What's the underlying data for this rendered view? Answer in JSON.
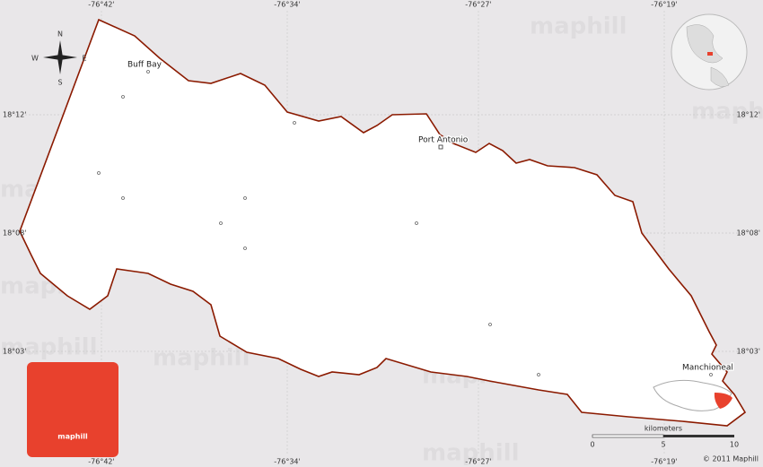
{
  "top_labels": [
    "-76°42'",
    "-76°34'",
    "-76°27'",
    "-76°19'"
  ],
  "bottom_labels": [
    "-76°42'",
    "-76°34'",
    "-76°27'",
    "-76°19'"
  ],
  "left_labels": [
    "18°12'",
    "18°08'",
    "18°03'"
  ],
  "right_labels": [
    "18°12'",
    "18°08'",
    "18°03'"
  ],
  "places": [
    "Buff Bay",
    "Port Antonio",
    "Manchioneal"
  ],
  "compass": {
    "north": "N",
    "south": "S",
    "west": "W",
    "east": "E"
  },
  "logo": "maphill",
  "watermark": "maphill",
  "scale": {
    "title": "kilometers",
    "ticks": [
      "0",
      "5",
      "10"
    ]
  },
  "copyright": "© 2011 Maphill"
}
